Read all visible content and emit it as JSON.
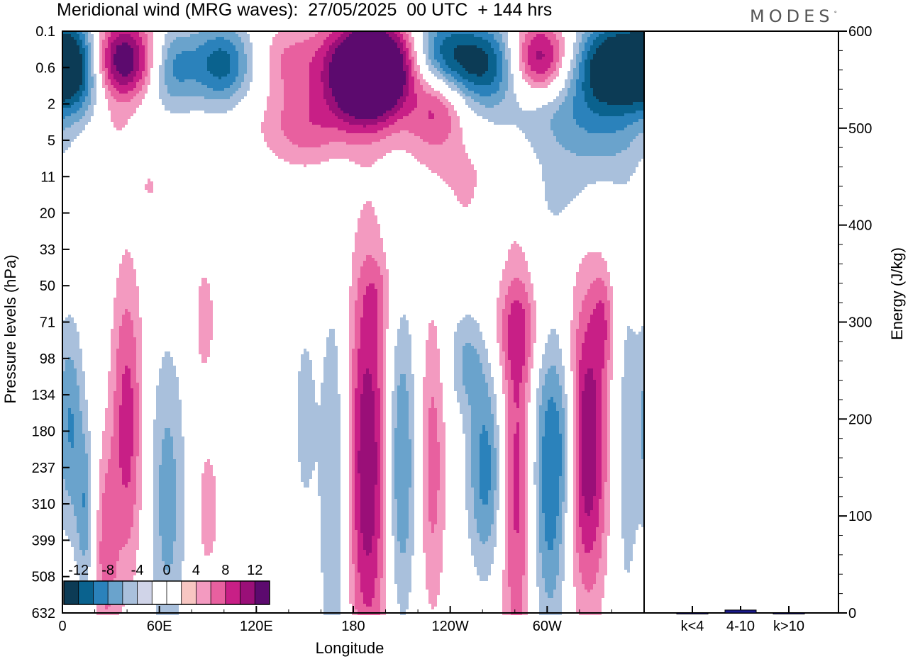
{
  "header": {
    "title": "Meridional wind (MRG waves):  27/05/2025  00 UTC  + 144 hrs",
    "logo": "MODES",
    "logo_mark": "°"
  },
  "colors": {
    "neg": [
      "#0c3b55",
      "#0a628e",
      "#2b82bb",
      "#6aa3cc",
      "#a9c0dc",
      "#d0d4e8"
    ],
    "pos": [
      "#f8c6c2",
      "#f39ac0",
      "#e8609f",
      "#c81f86",
      "#9a0f78",
      "#5c0a6e"
    ],
    "bar": "#1a1a8c"
  },
  "chart_data": [
    {
      "type": "heatmap",
      "title": "Meridional wind (MRG waves):  27/05/2025  00 UTC  + 144 hrs",
      "xlabel": "Longitude",
      "ylabel": "Pressure levels (hPa)",
      "x_ticks": [
        "0",
        "60E",
        "120E",
        "180",
        "120W",
        "60W"
      ],
      "x_tick_degrees": [
        0,
        60,
        120,
        180,
        240,
        300
      ],
      "xlim": [
        0,
        360
      ],
      "y_ticks": [
        "0.1",
        "0.6",
        "2",
        "5",
        "11",
        "20",
        "33",
        "50",
        "71",
        "98",
        "134",
        "180",
        "237",
        "310",
        "399",
        "508",
        "632"
      ],
      "colorbar": {
        "labels": [
          "-12",
          "-8",
          "-4",
          "0",
          "4",
          "8",
          "12"
        ],
        "levels": [
          -12,
          -10,
          -8,
          -6,
          -4,
          -2,
          0,
          2,
          4,
          6,
          8,
          10,
          12
        ]
      },
      "features": [
        {
          "lon": 8,
          "lev": 0.5,
          "w": 14,
          "h": 0.9,
          "v": -13
        },
        {
          "lon": 35,
          "lev": 0.5,
          "w": 15,
          "h": 0.9,
          "v": 14
        },
        {
          "lon": 68,
          "lev": 0.55,
          "w": 10,
          "h": 0.8,
          "v": -6
        },
        {
          "lon": 98,
          "lev": 0.5,
          "w": 14,
          "h": 0.8,
          "v": -9
        },
        {
          "lon": 140,
          "lev": 0.4,
          "w": 14,
          "h": 0.7,
          "v": 4
        },
        {
          "lon": 178,
          "lev": 0.6,
          "w": 16,
          "h": 1.0,
          "v": 8
        },
        {
          "lon": 200,
          "lev": 0.55,
          "w": 18,
          "h": 0.9,
          "v": 14
        },
        {
          "lon": 235,
          "lev": 0.5,
          "w": 16,
          "h": 0.9,
          "v": -13
        },
        {
          "lon": 265,
          "lev": 0.45,
          "w": 14,
          "h": 0.8,
          "v": -8
        },
        {
          "lon": 295,
          "lev": 0.45,
          "w": 14,
          "h": 0.8,
          "v": 12
        },
        {
          "lon": 340,
          "lev": 0.5,
          "w": 16,
          "h": 0.9,
          "v": -12
        },
        {
          "lon": 35,
          "lev": 1.6,
          "w": 20,
          "h": 0.6,
          "v": -3
        },
        {
          "lon": 190,
          "lev": 1.4,
          "w": 14,
          "h": 0.8,
          "v": 5
        },
        {
          "lon": 234,
          "lev": 1.6,
          "w": 12,
          "h": 0.8,
          "v": 9
        },
        {
          "lon": 300,
          "lev": 1.6,
          "w": 22,
          "h": 1.0,
          "v": -5
        },
        {
          "lon": 150,
          "lev": 3.5,
          "w": 20,
          "h": 0.8,
          "v": 5
        },
        {
          "lon": 225,
          "lev": 4.5,
          "w": 15,
          "h": 0.8,
          "v": 2
        },
        {
          "lon": 335,
          "lev": 4.5,
          "w": 20,
          "h": 1.0,
          "v": -4
        },
        {
          "lon": 30,
          "lev": 3.5,
          "w": 10,
          "h": 0.8,
          "v": 1.5
        },
        {
          "lon": 55,
          "lev": 13,
          "w": 8,
          "h": 0.8,
          "v": 2
        },
        {
          "lon": 250,
          "lev": 10,
          "w": 14,
          "h": 0.6,
          "v": 2
        },
        {
          "lon": 310,
          "lev": 15,
          "w": 14,
          "h": 0.8,
          "v": -2
        },
        {
          "lon": 250,
          "lev": 20,
          "w": 14,
          "h": 0.5,
          "v": 1.5
        },
        {
          "lon": 5,
          "lev": 170,
          "w": 6,
          "h": 2.0,
          "v": -6
        },
        {
          "lon": 14,
          "lev": 330,
          "w": 4,
          "h": 1.5,
          "v": -5
        },
        {
          "lon": 27,
          "lev": 430,
          "w": 5,
          "h": 2.0,
          "v": 5
        },
        {
          "lon": 40,
          "lev": 170,
          "w": 7,
          "h": 3.0,
          "v": 7
        },
        {
          "lon": 65,
          "lev": 300,
          "w": 8,
          "h": 3.0,
          "v": -5
        },
        {
          "lon": 88,
          "lev": 70,
          "w": 4,
          "h": 1.0,
          "v": 4
        },
        {
          "lon": 90,
          "lev": 320,
          "w": 6,
          "h": 1.5,
          "v": 3
        },
        {
          "lon": 120,
          "lev": 110,
          "w": 5,
          "h": 1.5,
          "v": -2
        },
        {
          "lon": 150,
          "lev": 160,
          "w": 5,
          "h": 2.0,
          "v": -3
        },
        {
          "lon": 169,
          "lev": 280,
          "w": 7,
          "h": 4.0,
          "v": -5
        },
        {
          "lon": 189,
          "lev": 230,
          "w": 10,
          "h": 4.0,
          "v": 10
        },
        {
          "lon": 209,
          "lev": 230,
          "w": 7,
          "h": 3.0,
          "v": -7
        },
        {
          "lon": 229,
          "lev": 230,
          "w": 6,
          "h": 3.0,
          "v": 5
        },
        {
          "lon": 250,
          "lev": 100,
          "w": 8,
          "h": 1.0,
          "v": -4
        },
        {
          "lon": 262,
          "lev": 240,
          "w": 8,
          "h": 2.0,
          "v": -7
        },
        {
          "lon": 281,
          "lev": 260,
          "w": 7,
          "h": 4.0,
          "v": 7
        },
        {
          "lon": 283,
          "lev": 75,
          "w": 12,
          "h": 1.0,
          "v": 4
        },
        {
          "lon": 302,
          "lev": 250,
          "w": 8,
          "h": 3.0,
          "v": -8
        },
        {
          "lon": 312,
          "lev": 190,
          "w": 5,
          "h": 1.5,
          "v": -3
        },
        {
          "lon": 325,
          "lev": 200,
          "w": 9,
          "h": 3.0,
          "v": 10
        },
        {
          "lon": 335,
          "lev": 70,
          "w": 5,
          "h": 1.0,
          "v": 4
        },
        {
          "lon": 349,
          "lev": 210,
          "w": 6,
          "h": 4.0,
          "v": -3
        },
        {
          "lon": 195,
          "lev": 55,
          "w": 7,
          "h": 0.7,
          "v": 2
        }
      ]
    },
    {
      "type": "bar",
      "categories": [
        "k<4",
        "4-10",
        "k>10"
      ],
      "values": [
        0,
        3,
        0
      ],
      "ylabel": "Energy (J/kg)",
      "ylim": [
        0,
        600
      ],
      "y_ticks": [
        "0",
        "100",
        "200",
        "300",
        "400",
        "500",
        "600"
      ]
    }
  ]
}
